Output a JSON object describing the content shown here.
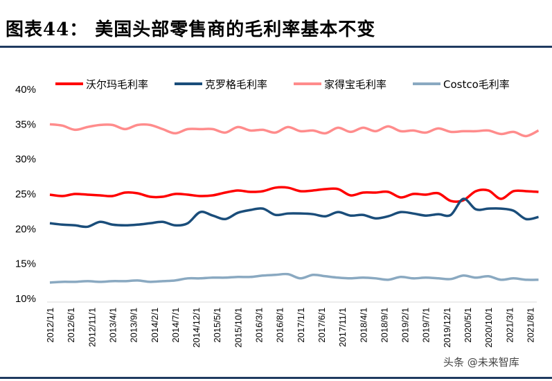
{
  "header": {
    "title": "图表44：  美国头部零售商的毛利率基本不变"
  },
  "watermark": "头条 @未来智库",
  "chart_data": {
    "type": "line",
    "title": "",
    "xlabel": "",
    "ylabel": "",
    "ylim": [
      10,
      40
    ],
    "grid": false,
    "legend": "top",
    "y_ticks": [
      "10%",
      "15%",
      "20%",
      "25%",
      "30%",
      "35%",
      "40%"
    ],
    "x_ticks": [
      "2012/1/1",
      "2012/6/1",
      "2012/11/1",
      "2013/4/1",
      "2013/9/1",
      "2014/2/1",
      "2014/7/1",
      "2014/12/1",
      "2015/5/1",
      "2015/10/1",
      "2016/3/1",
      "2016/8/1",
      "2017/1/1",
      "2017/6/1",
      "2017/11/1",
      "2018/4/1",
      "2018/9/1",
      "2019/2/1",
      "2019/7/1",
      "2019/12/1",
      "2020/5/1",
      "2020/10/1",
      "2021/3/1",
      "2021/8/1"
    ],
    "x": [
      "2012/1",
      "2012/4",
      "2012/7",
      "2012/10",
      "2013/1",
      "2013/4",
      "2013/7",
      "2013/10",
      "2014/1",
      "2014/4",
      "2014/7",
      "2014/10",
      "2015/1",
      "2015/4",
      "2015/7",
      "2015/10",
      "2016/1",
      "2016/4",
      "2016/7",
      "2016/10",
      "2017/1",
      "2017/4",
      "2017/7",
      "2017/10",
      "2018/1",
      "2018/4",
      "2018/7",
      "2018/10",
      "2019/1",
      "2019/4",
      "2019/7",
      "2019/10",
      "2020/1",
      "2020/4",
      "2020/7",
      "2020/10",
      "2021/1",
      "2021/4",
      "2021/7",
      "2021/10"
    ],
    "series": [
      {
        "name": "沃尔玛毛利率",
        "color": "#ff0000",
        "values": [
          24.9,
          24.7,
          25.0,
          24.9,
          24.8,
          24.7,
          25.2,
          25.1,
          24.6,
          24.6,
          25.0,
          24.9,
          24.7,
          24.8,
          25.2,
          25.5,
          25.3,
          25.4,
          25.9,
          25.9,
          25.4,
          25.5,
          25.7,
          25.7,
          24.8,
          25.2,
          25.2,
          25.3,
          24.5,
          25.0,
          24.9,
          25.1,
          24.0,
          24.1,
          25.4,
          25.5,
          24.3,
          25.4,
          25.4,
          25.3
        ]
      },
      {
        "name": "克罗格毛利率",
        "color": "#1a4d7a",
        "values": [
          20.8,
          20.6,
          20.5,
          20.3,
          21.0,
          20.6,
          20.5,
          20.6,
          20.8,
          21.0,
          20.5,
          20.8,
          22.4,
          21.9,
          21.4,
          22.3,
          22.7,
          22.9,
          22.0,
          22.2,
          22.2,
          22.1,
          21.8,
          22.4,
          21.9,
          22.0,
          21.5,
          21.8,
          22.4,
          22.2,
          21.9,
          22.1,
          22.0,
          24.3,
          22.8,
          22.9,
          22.9,
          22.6,
          21.4,
          21.7
        ]
      },
      {
        "name": "家得宝毛利率",
        "color": "#ff8c8c",
        "values": [
          35.0,
          34.8,
          34.2,
          34.6,
          34.9,
          34.9,
          34.3,
          34.9,
          34.9,
          34.3,
          33.7,
          34.3,
          34.3,
          34.3,
          33.8,
          34.6,
          34.1,
          34.2,
          33.8,
          34.6,
          34.0,
          34.1,
          33.7,
          34.5,
          33.9,
          34.5,
          34.0,
          34.7,
          34.0,
          34.1,
          33.8,
          34.4,
          33.9,
          34.0,
          34.0,
          34.1,
          33.6,
          33.9,
          33.3,
          34.1
        ]
      },
      {
        "name": "Costco毛利率",
        "color": "#8aa9c1",
        "values": [
          12.3,
          12.4,
          12.4,
          12.5,
          12.4,
          12.5,
          12.5,
          12.6,
          12.4,
          12.5,
          12.6,
          12.9,
          12.9,
          13.0,
          13.0,
          13.1,
          13.1,
          13.3,
          13.4,
          13.5,
          12.9,
          13.4,
          13.2,
          13.0,
          12.9,
          13.0,
          12.9,
          12.7,
          13.1,
          12.9,
          13.0,
          12.9,
          12.8,
          13.3,
          13.0,
          13.2,
          12.7,
          12.9,
          12.7,
          12.7
        ]
      }
    ]
  }
}
